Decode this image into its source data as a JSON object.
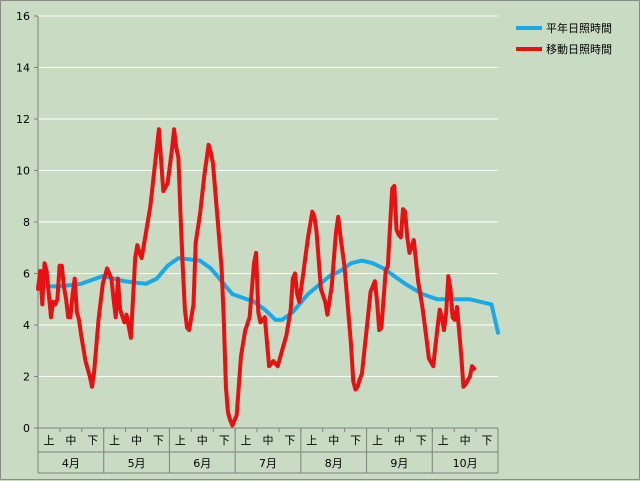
{
  "chart_data": {
    "type": "line",
    "ylim": [
      0,
      16
    ],
    "y_ticks": [
      "0",
      "2",
      "4",
      "6",
      "8",
      "10",
      "12",
      "14",
      "16"
    ],
    "grid": "horizontal",
    "legend_position": "top-right",
    "colors": {
      "background": "#c9dcc3",
      "grid": "#ffffff",
      "axis": "#7f7f7f"
    },
    "months": [
      "4月",
      "5月",
      "6月",
      "7月",
      "8月",
      "9月",
      "10月"
    ],
    "decades": [
      "上",
      "中",
      "下"
    ],
    "n_points": 214,
    "series": [
      {
        "name": "平年日照時間",
        "color": "#1aa9e8",
        "points": [
          [
            0,
            5.5
          ],
          [
            10,
            5.5
          ],
          [
            20,
            5.6
          ],
          [
            30,
            5.9
          ],
          [
            40,
            5.7
          ],
          [
            50,
            5.6
          ],
          [
            55,
            5.8
          ],
          [
            60,
            6.3
          ],
          [
            65,
            6.6
          ],
          [
            75,
            6.5
          ],
          [
            80,
            6.2
          ],
          [
            90,
            5.2
          ],
          [
            100,
            4.9
          ],
          [
            105,
            4.6
          ],
          [
            110,
            4.2
          ],
          [
            113,
            4.2
          ],
          [
            118,
            4.5
          ],
          [
            125,
            5.2
          ],
          [
            135,
            5.9
          ],
          [
            140,
            6.1
          ],
          [
            145,
            6.4
          ],
          [
            150,
            6.5
          ],
          [
            155,
            6.4
          ],
          [
            160,
            6.2
          ],
          [
            165,
            5.9
          ],
          [
            170,
            5.6
          ],
          [
            178,
            5.2
          ],
          [
            185,
            5.0
          ],
          [
            200,
            5.0
          ],
          [
            210,
            4.8
          ],
          [
            213,
            3.7
          ]
        ]
      },
      {
        "name": "移動日照時間",
        "color": "#e81010",
        "points": [
          [
            0,
            5.4
          ],
          [
            1,
            6.1
          ],
          [
            2,
            4.8
          ],
          [
            3,
            6.4
          ],
          [
            4,
            6.1
          ],
          [
            5,
            5.2
          ],
          [
            6,
            4.3
          ],
          [
            7,
            4.9
          ],
          [
            8,
            4.8
          ],
          [
            9,
            5.0
          ],
          [
            10,
            6.3
          ],
          [
            11,
            6.3
          ],
          [
            12,
            5.5
          ],
          [
            13,
            5.0
          ],
          [
            14,
            4.3
          ],
          [
            15,
            4.3
          ],
          [
            16,
            5.2
          ],
          [
            17,
            5.8
          ],
          [
            18,
            4.5
          ],
          [
            19,
            4.2
          ],
          [
            20,
            3.6
          ],
          [
            22,
            2.6
          ],
          [
            24,
            2.0
          ],
          [
            25,
            1.6
          ],
          [
            26,
            2.2
          ],
          [
            28,
            4.2
          ],
          [
            30,
            5.6
          ],
          [
            32,
            6.2
          ],
          [
            34,
            5.8
          ],
          [
            35,
            5.0
          ],
          [
            36,
            4.3
          ],
          [
            37,
            5.8
          ],
          [
            38,
            4.6
          ],
          [
            40,
            4.1
          ],
          [
            41,
            4.4
          ],
          [
            43,
            3.5
          ],
          [
            45,
            6.6
          ],
          [
            46,
            7.1
          ],
          [
            47,
            6.8
          ],
          [
            48,
            6.6
          ],
          [
            50,
            7.6
          ],
          [
            52,
            8.6
          ],
          [
            54,
            10.1
          ],
          [
            56,
            11.6
          ],
          [
            57,
            10.4
          ],
          [
            58,
            9.2
          ],
          [
            60,
            9.5
          ],
          [
            62,
            10.8
          ],
          [
            63,
            11.6
          ],
          [
            64,
            10.9
          ],
          [
            65,
            10.5
          ],
          [
            66,
            8.3
          ],
          [
            67,
            6.3
          ],
          [
            68,
            4.6
          ],
          [
            69,
            3.9
          ],
          [
            70,
            3.8
          ],
          [
            72,
            4.8
          ],
          [
            73,
            7.2
          ],
          [
            75,
            8.3
          ],
          [
            77,
            9.8
          ],
          [
            79,
            11.0
          ],
          [
            80,
            10.7
          ],
          [
            81,
            10.3
          ],
          [
            83,
            8.3
          ],
          [
            85,
            6.2
          ],
          [
            86,
            4.3
          ],
          [
            87,
            1.6
          ],
          [
            88,
            0.6
          ],
          [
            89,
            0.3
          ],
          [
            90,
            0.1
          ],
          [
            92,
            0.5
          ],
          [
            94,
            2.8
          ],
          [
            96,
            3.8
          ],
          [
            98,
            4.3
          ],
          [
            100,
            6.4
          ],
          [
            101,
            6.8
          ],
          [
            102,
            4.5
          ],
          [
            103,
            4.1
          ],
          [
            105,
            4.3
          ],
          [
            107,
            2.4
          ],
          [
            109,
            2.6
          ],
          [
            111,
            2.4
          ],
          [
            113,
            3.0
          ],
          [
            115,
            3.6
          ],
          [
            117,
            4.6
          ],
          [
            118,
            5.8
          ],
          [
            119,
            6.0
          ],
          [
            120,
            5.2
          ],
          [
            121,
            4.9
          ],
          [
            123,
            6.1
          ],
          [
            125,
            7.4
          ],
          [
            127,
            8.4
          ],
          [
            128,
            8.2
          ],
          [
            129,
            7.6
          ],
          [
            131,
            5.4
          ],
          [
            133,
            4.9
          ],
          [
            134,
            4.4
          ],
          [
            136,
            5.5
          ],
          [
            138,
            7.6
          ],
          [
            139,
            8.2
          ],
          [
            140,
            7.5
          ],
          [
            142,
            6.2
          ],
          [
            143,
            5.2
          ],
          [
            145,
            3.2
          ],
          [
            146,
            1.8
          ],
          [
            147,
            1.5
          ],
          [
            148,
            1.6
          ],
          [
            149,
            1.9
          ],
          [
            150,
            2.1
          ],
          [
            152,
            3.7
          ],
          [
            154,
            5.3
          ],
          [
            156,
            5.7
          ],
          [
            157,
            4.9
          ],
          [
            158,
            3.8
          ],
          [
            159,
            3.9
          ],
          [
            161,
            6.1
          ],
          [
            162,
            6.3
          ],
          [
            163,
            7.8
          ],
          [
            164,
            9.3
          ],
          [
            165,
            9.4
          ],
          [
            166,
            7.7
          ],
          [
            167,
            7.5
          ],
          [
            168,
            7.4
          ],
          [
            169,
            8.5
          ],
          [
            170,
            8.4
          ],
          [
            171,
            7.4
          ],
          [
            172,
            6.8
          ],
          [
            174,
            7.3
          ],
          [
            176,
            5.7
          ],
          [
            178,
            4.7
          ],
          [
            180,
            3.4
          ],
          [
            181,
            2.7
          ],
          [
            183,
            2.4
          ],
          [
            185,
            3.9
          ],
          [
            186,
            4.6
          ],
          [
            187,
            4.3
          ],
          [
            188,
            3.8
          ],
          [
            189,
            4.5
          ],
          [
            190,
            5.9
          ],
          [
            191,
            5.4
          ],
          [
            192,
            4.3
          ],
          [
            193,
            4.2
          ],
          [
            194,
            4.7
          ],
          [
            196,
            2.8
          ],
          [
            197,
            1.6
          ],
          [
            198,
            1.7
          ],
          [
            200,
            2.0
          ],
          [
            201,
            2.4
          ],
          [
            202,
            2.3
          ]
        ]
      }
    ]
  }
}
